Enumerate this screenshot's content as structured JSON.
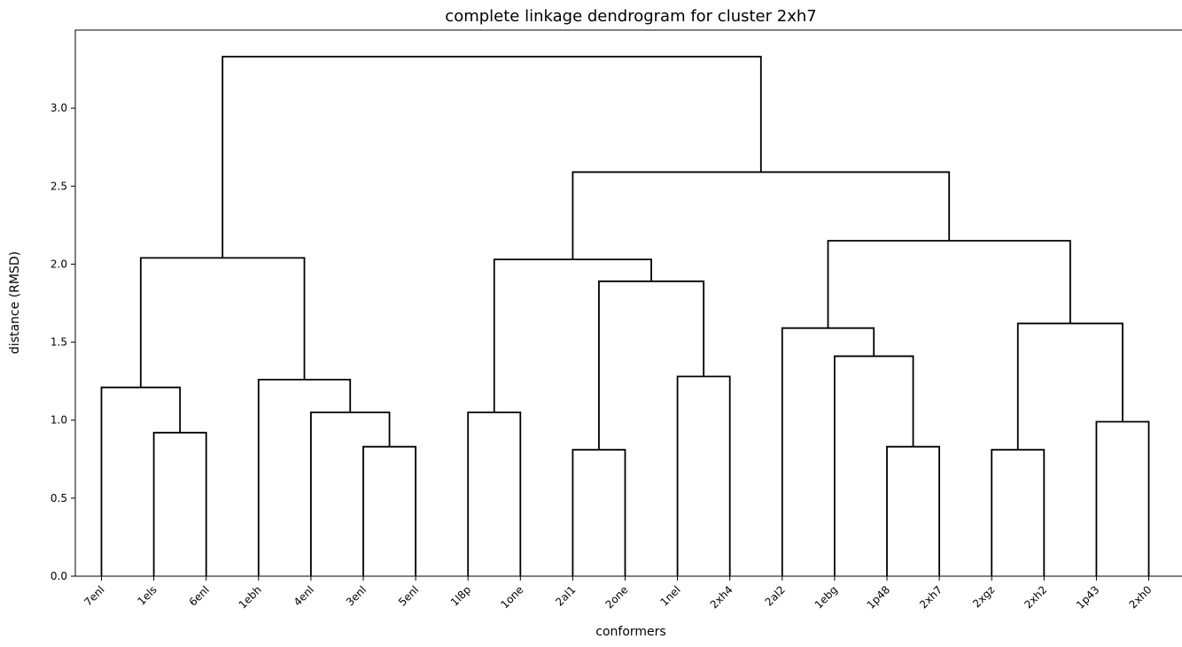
{
  "chart_data": {
    "type": "dendrogram",
    "title": "complete linkage dendrogram for cluster 2xh7",
    "xlabel": "conformers",
    "ylabel": "distance (RMSD)",
    "ylim": [
      0,
      3.5
    ],
    "yticks": [
      "0.0",
      "0.5",
      "1.0",
      "1.5",
      "2.0",
      "2.5",
      "3.0"
    ],
    "ytick_values": [
      0,
      0.5,
      1.0,
      1.5,
      2.0,
      2.5,
      3.0
    ],
    "leaves": [
      "7enl",
      "1els",
      "6enl",
      "1ebh",
      "4enl",
      "3enl",
      "5enl",
      "1l8p",
      "1one",
      "2al1",
      "2one",
      "1nel",
      "2xh4",
      "2al2",
      "1ebg",
      "1p48",
      "2xh7",
      "2xgz",
      "2xh2",
      "1p43",
      "2xh0"
    ],
    "merges": [
      {
        "left": "1els",
        "right": "6enl",
        "height": 0.92
      },
      {
        "left": "7enl",
        "right": "1els+6enl",
        "height": 1.21
      },
      {
        "left": "3enl",
        "right": "5enl",
        "height": 0.83
      },
      {
        "left": "4enl",
        "right": "3enl+5enl",
        "height": 1.05
      },
      {
        "left": "1ebh",
        "right": "4enl+3enl+5enl",
        "height": 1.26
      },
      {
        "left": "cluster-A",
        "right": "cluster-B",
        "height": 2.04
      },
      {
        "left": "1l8p",
        "right": "1one",
        "height": 1.05
      },
      {
        "left": "2al1",
        "right": "2one",
        "height": 0.81
      },
      {
        "left": "1nel",
        "right": "2xh4",
        "height": 1.28
      },
      {
        "left": "2al1+2one",
        "right": "1nel+2xh4",
        "height": 1.89
      },
      {
        "left": "1l8p+1one",
        "right": "cluster-C",
        "height": 2.03
      },
      {
        "left": "1p48",
        "right": "2xh7",
        "height": 0.83
      },
      {
        "left": "1ebg",
        "right": "1p48+2xh7",
        "height": 1.41
      },
      {
        "left": "2al2",
        "right": "cluster-D",
        "height": 1.59
      },
      {
        "left": "2xgz",
        "right": "2xh2",
        "height": 0.81
      },
      {
        "left": "1p43",
        "right": "2xh0",
        "height": 0.99
      },
      {
        "left": "2xgz+2xh2",
        "right": "1p43+2xh0",
        "height": 1.62
      },
      {
        "left": "cluster-E",
        "right": "cluster-F",
        "height": 2.15
      },
      {
        "left": "cluster-G",
        "right": "cluster-H",
        "height": 2.59
      },
      {
        "left": "cluster-I",
        "right": "cluster-J",
        "height": 3.33
      }
    ],
    "grid": false,
    "line_color": "#000000"
  }
}
